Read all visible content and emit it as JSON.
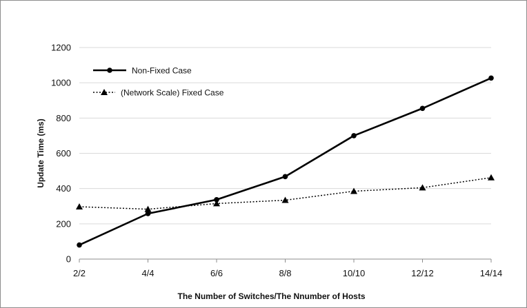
{
  "chart_data": {
    "type": "line",
    "categories": [
      "2/2",
      "4/4",
      "6/6",
      "8/8",
      "10/10",
      "12/12",
      "14/14"
    ],
    "xlabel": "The Number of Switches/The Nnumber of  Hosts",
    "ylabel": "Update Time (ms)",
    "ylim": [
      0,
      1200
    ],
    "yticks": [
      0,
      200,
      400,
      600,
      800,
      1000,
      1200
    ],
    "grid": true,
    "legend_position": "top-left",
    "series": [
      {
        "name": "Non-Fixed Case",
        "values": [
          80,
          258,
          337,
          468,
          700,
          855,
          1027
        ],
        "color": "#000000",
        "line_style": "solid",
        "marker": "circle"
      },
      {
        "name": "(Network Scale) Fixed Case",
        "values": [
          297,
          283,
          315,
          334,
          385,
          405,
          462
        ],
        "color": "#000000",
        "line_style": "dotted",
        "marker": "triangle"
      }
    ]
  }
}
